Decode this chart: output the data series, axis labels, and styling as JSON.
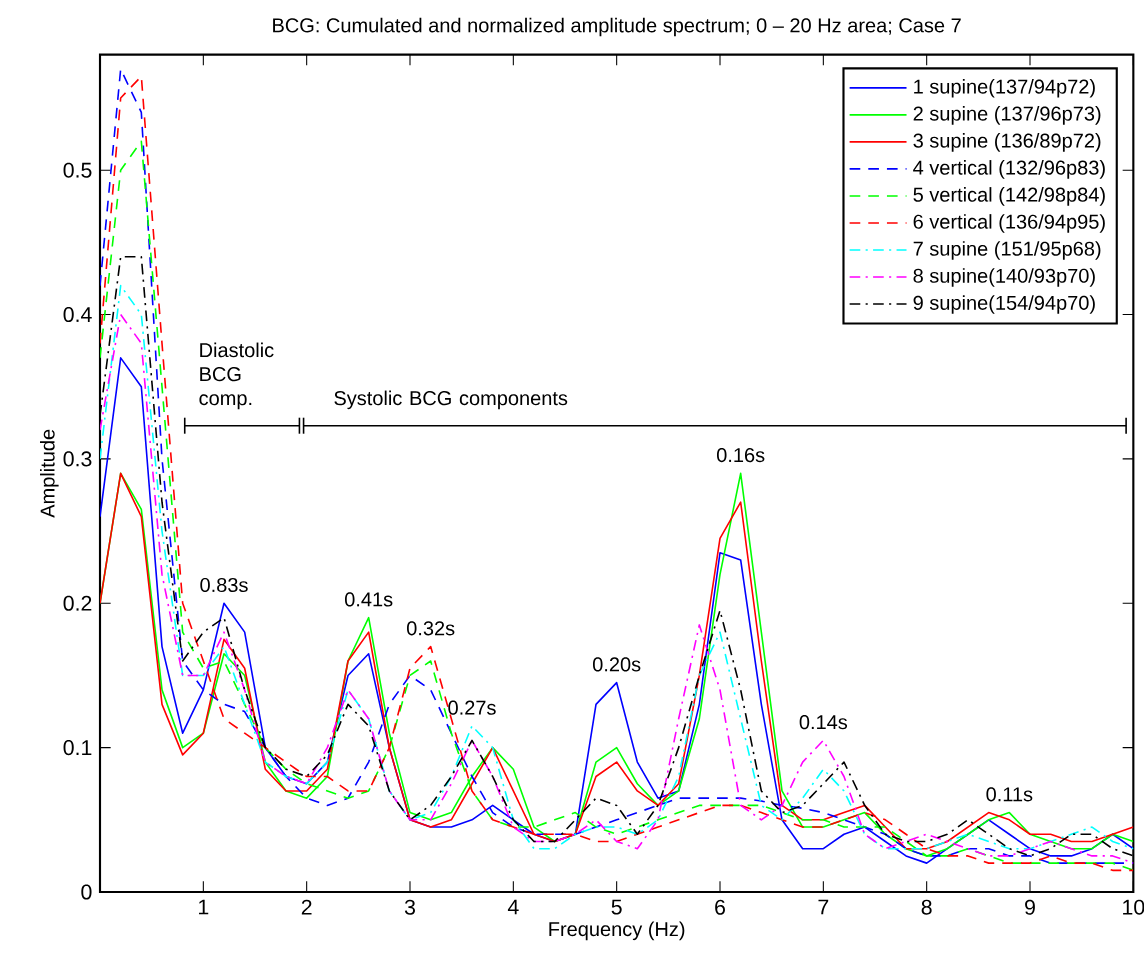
{
  "chart_data": {
    "type": "line",
    "title": "BCG: Cumulated and normalized amplitude spectrum; 0 – 20 Hz area; Case 7",
    "xlabel": "Frequency (Hz)",
    "ylabel": "Amplitude",
    "x": [
      0,
      0.2,
      0.4,
      0.6,
      0.8,
      1.0,
      1.2,
      1.4,
      1.6,
      1.8,
      2.0,
      2.2,
      2.4,
      2.6,
      2.8,
      3.0,
      3.2,
      3.4,
      3.6,
      3.8,
      4.0,
      4.2,
      4.4,
      4.6,
      4.8,
      5.0,
      5.2,
      5.4,
      5.6,
      5.8,
      6.0,
      6.2,
      6.4,
      6.6,
      6.8,
      7.0,
      7.2,
      7.4,
      7.6,
      7.8,
      8.0,
      8.2,
      8.4,
      8.6,
      8.8,
      9.0,
      9.2,
      9.4,
      9.6,
      9.8,
      10.0
    ],
    "xlim": [
      0,
      10
    ],
    "ylim": [
      0,
      0.58
    ],
    "xticks": [
      1,
      2,
      3,
      4,
      5,
      6,
      7,
      8,
      9,
      10
    ],
    "yticks": [
      0,
      0.1,
      0.2,
      0.3,
      0.4,
      0.5
    ],
    "legend": "top right",
    "series": [
      {
        "name": "1 supine(137/94p72)",
        "color": "#0000ff",
        "line_style": "solid",
        "values": [
          0.26,
          0.37,
          0.35,
          0.17,
          0.11,
          0.14,
          0.2,
          0.18,
          0.1,
          0.08,
          0.075,
          0.09,
          0.15,
          0.165,
          0.1,
          0.05,
          0.045,
          0.045,
          0.05,
          0.06,
          0.05,
          0.04,
          0.035,
          0.04,
          0.13,
          0.145,
          0.09,
          0.065,
          0.07,
          0.13,
          0.235,
          0.23,
          0.13,
          0.05,
          0.03,
          0.03,
          0.04,
          0.045,
          0.035,
          0.025,
          0.02,
          0.03,
          0.04,
          0.05,
          0.04,
          0.03,
          0.025,
          0.025,
          0.03,
          0.04,
          0.03
        ]
      },
      {
        "name": "2 supine (137/96p73)",
        "color": "#00ff00",
        "line_style": "solid",
        "values": [
          0.2,
          0.29,
          0.265,
          0.14,
          0.1,
          0.11,
          0.165,
          0.15,
          0.09,
          0.07,
          0.065,
          0.08,
          0.16,
          0.19,
          0.11,
          0.055,
          0.05,
          0.055,
          0.08,
          0.1,
          0.085,
          0.045,
          0.035,
          0.04,
          0.09,
          0.1,
          0.075,
          0.06,
          0.07,
          0.12,
          0.22,
          0.29,
          0.18,
          0.07,
          0.045,
          0.045,
          0.05,
          0.055,
          0.04,
          0.03,
          0.025,
          0.03,
          0.04,
          0.05,
          0.055,
          0.04,
          0.035,
          0.03,
          0.03,
          0.04,
          0.035
        ]
      },
      {
        "name": "3 supine (136/89p72)",
        "color": "#ff0000",
        "line_style": "solid",
        "values": [
          0.2,
          0.29,
          0.26,
          0.13,
          0.095,
          0.11,
          0.175,
          0.155,
          0.085,
          0.07,
          0.07,
          0.085,
          0.16,
          0.18,
          0.1,
          0.05,
          0.045,
          0.05,
          0.075,
          0.1,
          0.07,
          0.04,
          0.035,
          0.04,
          0.08,
          0.09,
          0.07,
          0.06,
          0.075,
          0.15,
          0.245,
          0.27,
          0.16,
          0.06,
          0.05,
          0.05,
          0.055,
          0.06,
          0.045,
          0.03,
          0.03,
          0.035,
          0.045,
          0.055,
          0.05,
          0.04,
          0.04,
          0.035,
          0.035,
          0.04,
          0.045
        ]
      },
      {
        "name": "4 vertical (132/96p83)",
        "color": "#0000ff",
        "line_style": "dashed",
        "values": [
          0.42,
          0.57,
          0.54,
          0.3,
          0.16,
          0.14,
          0.13,
          0.125,
          0.1,
          0.08,
          0.065,
          0.06,
          0.065,
          0.09,
          0.13,
          0.15,
          0.14,
          0.11,
          0.08,
          0.055,
          0.045,
          0.04,
          0.04,
          0.04,
          0.045,
          0.05,
          0.055,
          0.06,
          0.065,
          0.065,
          0.065,
          0.065,
          0.063,
          0.06,
          0.058,
          0.055,
          0.05,
          0.045,
          0.04,
          0.03,
          0.025,
          0.025,
          0.03,
          0.03,
          0.025,
          0.025,
          0.02,
          0.02,
          0.02,
          0.02,
          0.02
        ]
      },
      {
        "name": "5 vertical (142/98p84)",
        "color": "#00ff00",
        "line_style": "dashed",
        "values": [
          0.37,
          0.5,
          0.52,
          0.35,
          0.18,
          0.155,
          0.16,
          0.13,
          0.1,
          0.085,
          0.075,
          0.07,
          0.065,
          0.07,
          0.1,
          0.15,
          0.16,
          0.11,
          0.07,
          0.05,
          0.045,
          0.045,
          0.05,
          0.055,
          0.045,
          0.04,
          0.045,
          0.05,
          0.055,
          0.06,
          0.06,
          0.06,
          0.06,
          0.055,
          0.05,
          0.05,
          0.045,
          0.045,
          0.045,
          0.035,
          0.025,
          0.025,
          0.03,
          0.025,
          0.02,
          0.02,
          0.02,
          0.02,
          0.02,
          0.02,
          0.015
        ]
      },
      {
        "name": "6 vertical (136/94p95)",
        "color": "#ff0000",
        "line_style": "dashed",
        "values": [
          0.38,
          0.55,
          0.565,
          0.38,
          0.2,
          0.16,
          0.12,
          0.11,
          0.1,
          0.09,
          0.08,
          0.08,
          0.07,
          0.07,
          0.1,
          0.155,
          0.17,
          0.12,
          0.07,
          0.05,
          0.045,
          0.04,
          0.04,
          0.04,
          0.035,
          0.035,
          0.04,
          0.045,
          0.05,
          0.055,
          0.06,
          0.06,
          0.055,
          0.05,
          0.045,
          0.045,
          0.05,
          0.055,
          0.05,
          0.04,
          0.03,
          0.025,
          0.025,
          0.02,
          0.02,
          0.02,
          0.025,
          0.02,
          0.02,
          0.015,
          0.015
        ]
      },
      {
        "name": "7 supine (151/95p68)",
        "color": "#00ffff",
        "line_style": "dashdot",
        "values": [
          0.3,
          0.42,
          0.4,
          0.25,
          0.15,
          0.15,
          0.17,
          0.13,
          0.09,
          0.08,
          0.075,
          0.09,
          0.14,
          0.12,
          0.07,
          0.05,
          0.055,
          0.08,
          0.115,
          0.1,
          0.05,
          0.03,
          0.03,
          0.04,
          0.045,
          0.045,
          0.04,
          0.05,
          0.08,
          0.15,
          0.18,
          0.12,
          0.06,
          0.05,
          0.065,
          0.085,
          0.07,
          0.04,
          0.03,
          0.03,
          0.03,
          0.035,
          0.04,
          0.035,
          0.03,
          0.03,
          0.035,
          0.04,
          0.045,
          0.035,
          0.03
        ]
      },
      {
        "name": "8 supine(140/93p70)",
        "color": "#ff00ff",
        "line_style": "dashdot",
        "values": [
          0.32,
          0.4,
          0.38,
          0.22,
          0.15,
          0.15,
          0.18,
          0.14,
          0.09,
          0.08,
          0.075,
          0.1,
          0.14,
          0.12,
          0.07,
          0.05,
          0.05,
          0.075,
          0.105,
          0.08,
          0.045,
          0.035,
          0.035,
          0.04,
          0.05,
          0.035,
          0.03,
          0.05,
          0.12,
          0.185,
          0.14,
          0.06,
          0.05,
          0.06,
          0.09,
          0.105,
          0.08,
          0.04,
          0.03,
          0.035,
          0.04,
          0.035,
          0.03,
          0.025,
          0.025,
          0.03,
          0.035,
          0.03,
          0.025,
          0.025,
          0.02
        ]
      },
      {
        "type": "line",
        "color": "#000000",
        "line_style": "solid",
        "x": [
          0.82,
          1.93
        ],
        "values": [
          0.323,
          0.323
        ]
      },
      {
        "type": "line",
        "color": "#000000",
        "line_style": "solid",
        "x": [
          1.97,
          9.93
        ],
        "values": [
          0.323,
          0.323
        ]
      },
      {
        "name": "9 supine(154/94p70)",
        "color": "#000000",
        "line_style": "dashdot",
        "values": [
          0.33,
          0.44,
          0.44,
          0.27,
          0.16,
          0.18,
          0.19,
          0.14,
          0.1,
          0.085,
          0.08,
          0.095,
          0.13,
          0.115,
          0.07,
          0.05,
          0.06,
          0.08,
          0.105,
          0.08,
          0.05,
          0.035,
          0.035,
          0.05,
          0.065,
          0.06,
          0.04,
          0.06,
          0.1,
          0.15,
          0.195,
          0.14,
          0.07,
          0.055,
          0.06,
          0.075,
          0.09,
          0.06,
          0.04,
          0.035,
          0.035,
          0.04,
          0.05,
          0.04,
          0.03,
          0.025,
          0.03,
          0.04,
          0.04,
          0.03,
          0.025
        ]
      }
    ],
    "annotations": [
      "Diastolic BCG comp.",
      "Systolic BCG components",
      {
        "text": "0.83s",
        "x": 1.2,
        "y": 0.2
      },
      {
        "text": "0.41s",
        "x": 2.6,
        "y": 0.19
      },
      {
        "text": "0.32s",
        "x": 3.2,
        "y": 0.17
      },
      {
        "text": "0.27s",
        "x": 3.6,
        "y": 0.115
      },
      {
        "text": "0.20s",
        "x": 5.0,
        "y": 0.145
      },
      {
        "text": "0.16s",
        "x": 6.2,
        "y": 0.29
      },
      {
        "text": "0.14s",
        "x": 7.0,
        "y": 0.105
      },
      {
        "text": "0.11s",
        "x": 8.8,
        "y": 0.055
      }
    ]
  }
}
